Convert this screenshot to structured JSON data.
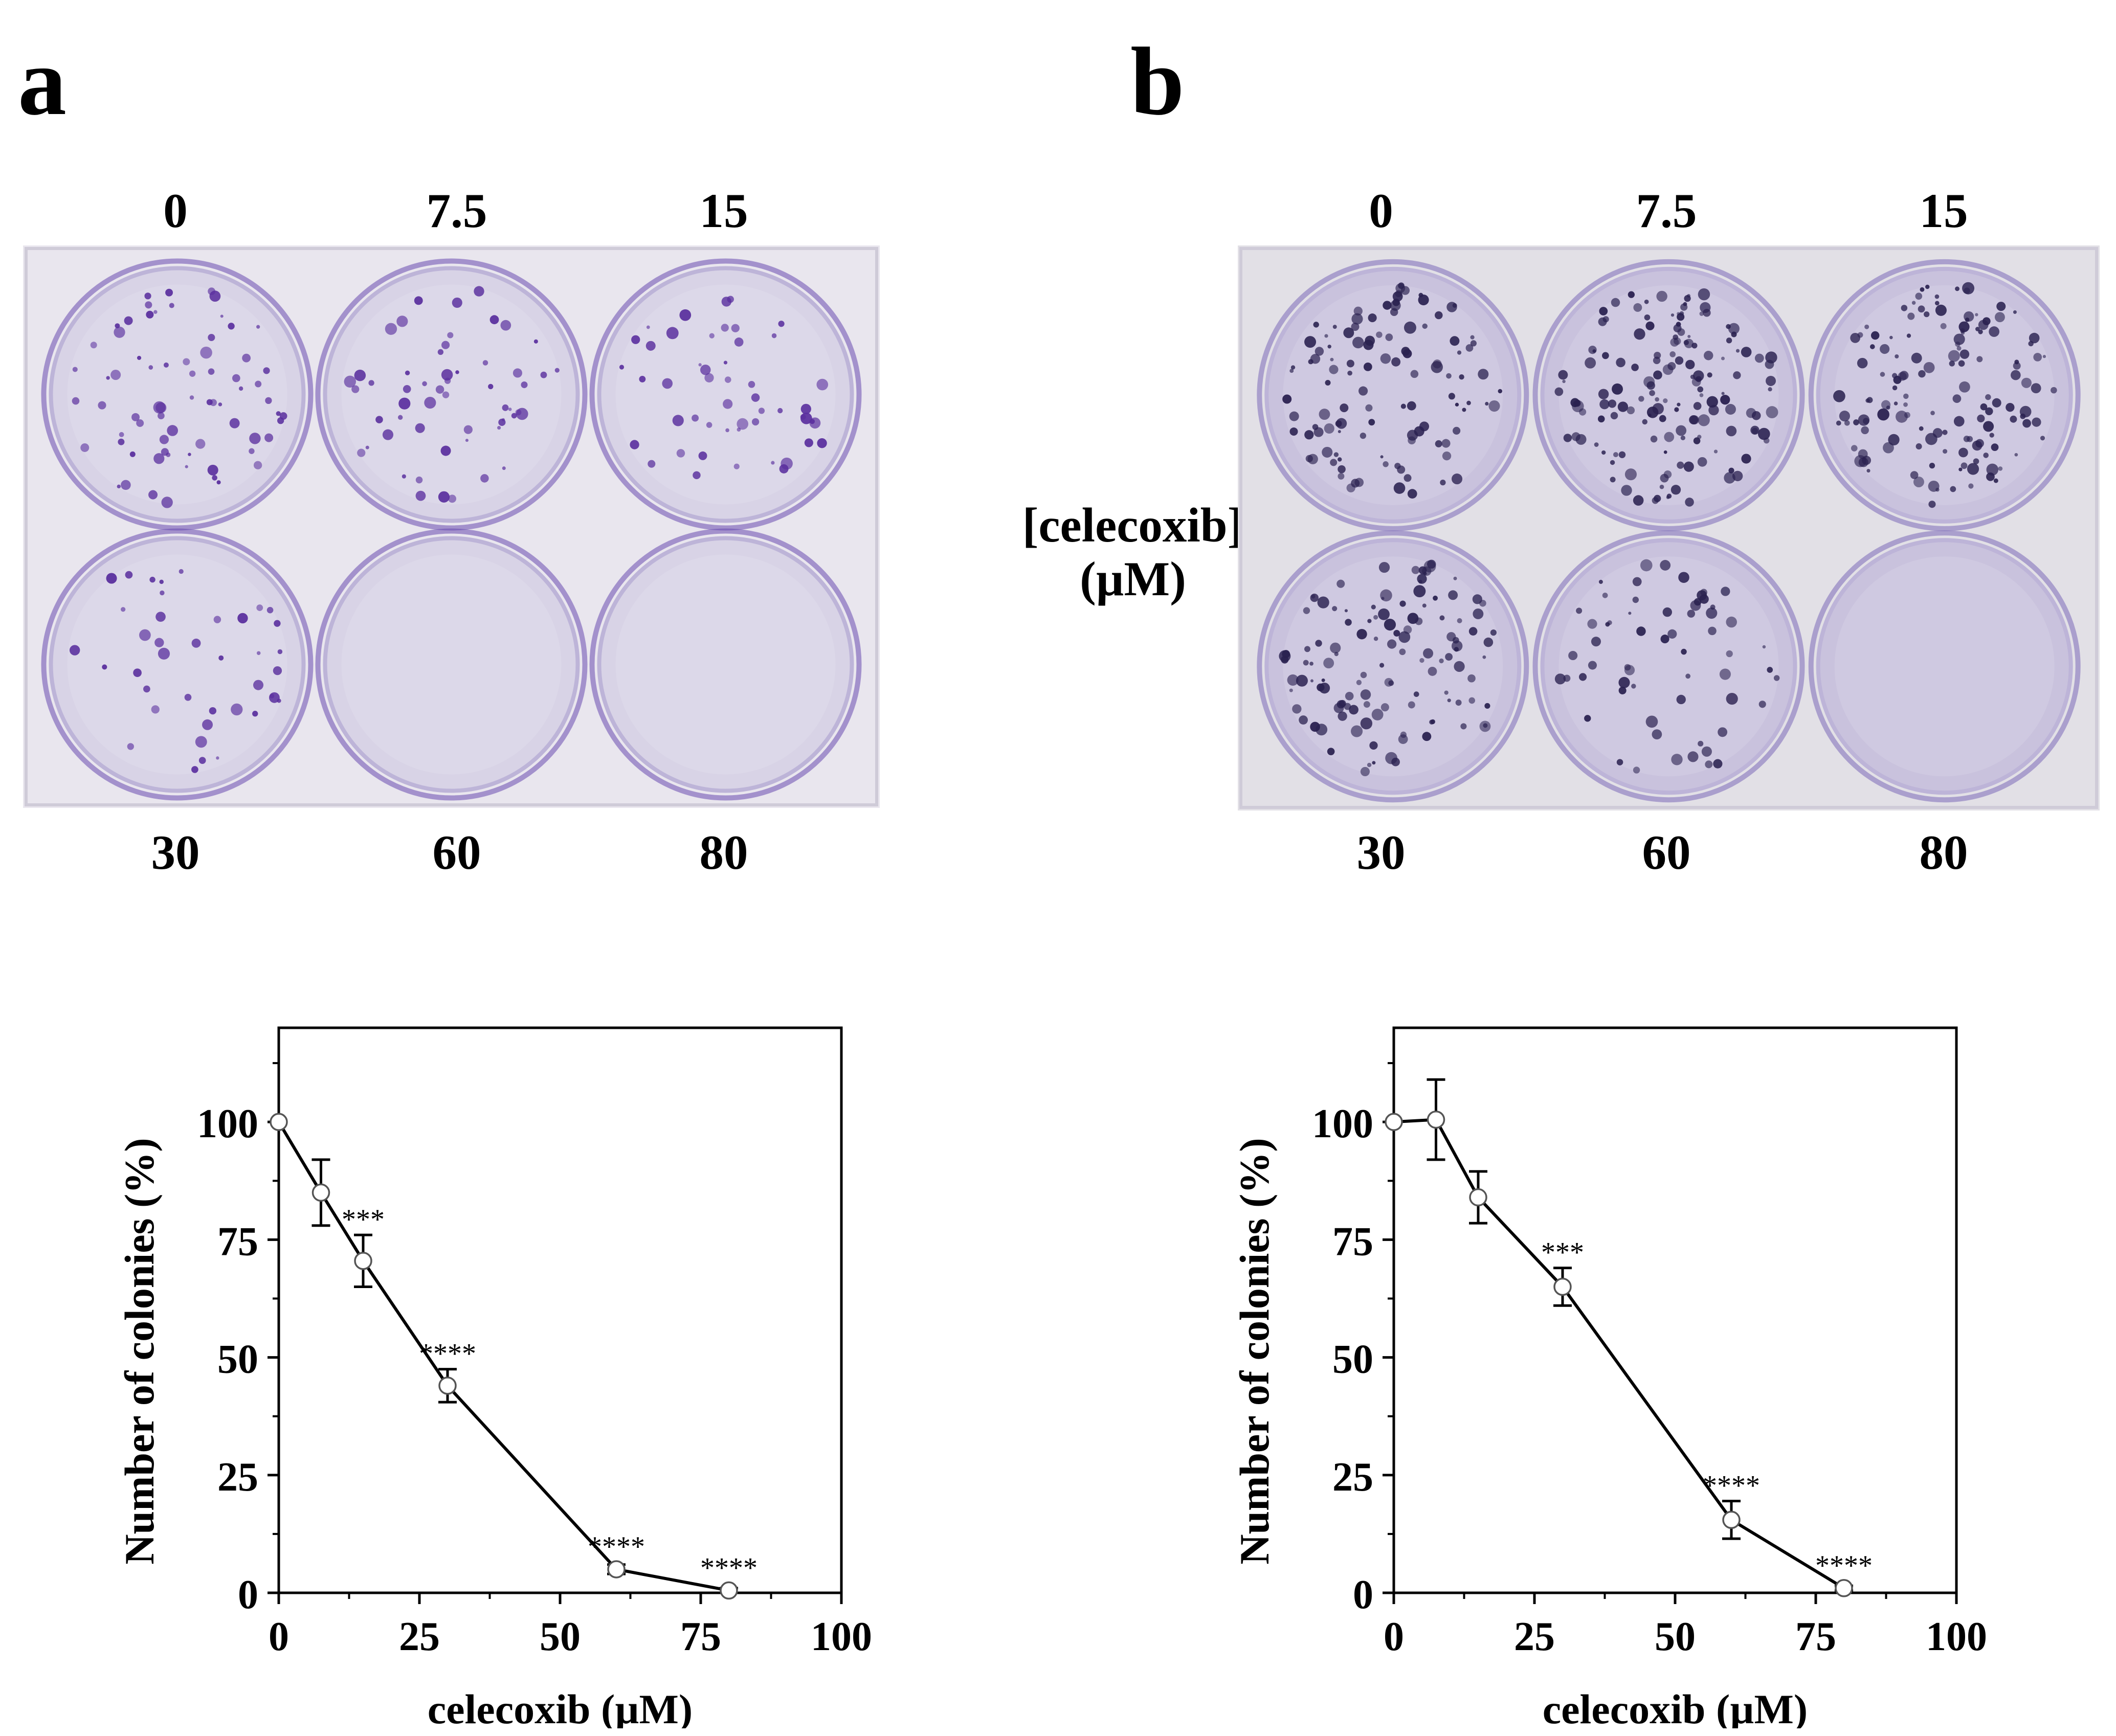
{
  "panels": [
    {
      "letter": "a",
      "top_labels": [
        "0",
        "7.5",
        "15"
      ],
      "bottom_labels": [
        "30",
        "60",
        "80"
      ],
      "plate_colors": {
        "frame": "#e9e6ee",
        "well": "#d8d3e6",
        "stain": "#6a4bb0",
        "colony": "#5a2f9e"
      }
    },
    {
      "letter": "b",
      "top_labels": [
        "0",
        "7.5",
        "15"
      ],
      "bottom_labels": [
        "30",
        "60",
        "80"
      ],
      "plate_colors": {
        "frame": "#e2e0e6",
        "well": "#c9c2dd",
        "stain": "#7b69b8",
        "colony": "#2a2150"
      }
    }
  ],
  "middle_label": {
    "line1": "[celecoxib]",
    "line2": "(µM)"
  },
  "chart_data": [
    {
      "type": "line",
      "panel": "a",
      "xlabel": "celecoxib (µM)",
      "ylabel": "Number of colonies (%)",
      "xlim": [
        0,
        100
      ],
      "ylim": [
        0,
        120
      ],
      "xticks": [
        0,
        25,
        50,
        75,
        100
      ],
      "yticks": [
        0,
        25,
        50,
        75,
        100
      ],
      "grid": false,
      "series": [
        {
          "x": [
            0,
            7.5,
            15,
            30,
            60,
            80
          ],
          "y": [
            100,
            85,
            70.5,
            44,
            5,
            0.5
          ],
          "err": [
            0,
            7,
            5.5,
            3.5,
            1,
            0.5
          ],
          "annotations": [
            "",
            "",
            "***",
            "****",
            "****",
            "****"
          ]
        }
      ]
    },
    {
      "type": "line",
      "panel": "b",
      "xlabel": "celecoxib (µM)",
      "ylabel": "Number of colonies (%)",
      "xlim": [
        0,
        100
      ],
      "ylim": [
        0,
        120
      ],
      "xticks": [
        0,
        25,
        50,
        75,
        100
      ],
      "yticks": [
        0,
        25,
        50,
        75,
        100
      ],
      "grid": false,
      "series": [
        {
          "x": [
            0,
            7.5,
            15,
            30,
            60,
            80
          ],
          "y": [
            100,
            100.5,
            84,
            65,
            15.5,
            1
          ],
          "err": [
            0,
            8.5,
            5.5,
            4,
            4,
            0.5
          ],
          "annotations": [
            "",
            "",
            "",
            "***",
            "****",
            "****"
          ]
        }
      ]
    }
  ]
}
